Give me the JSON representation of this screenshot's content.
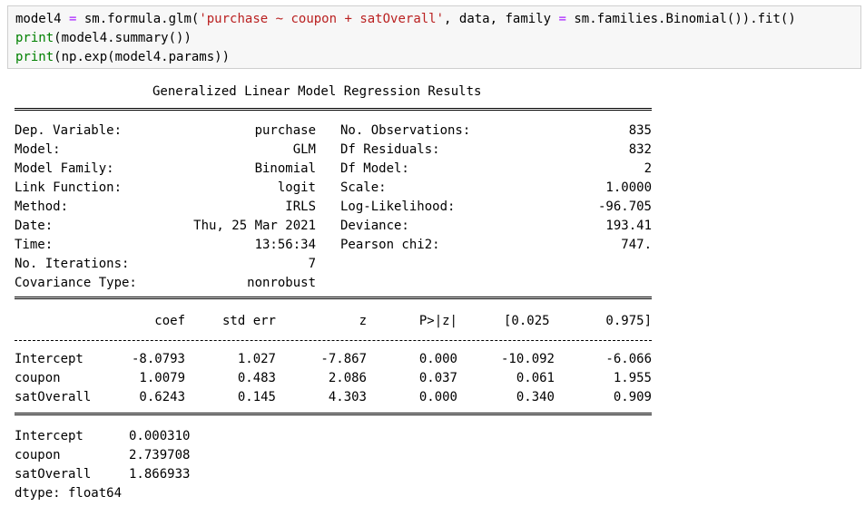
{
  "code": {
    "line1": {
      "a": "model4 ",
      "eq": "=",
      "b": " sm.formula.glm(",
      "s": "'purchase ~ coupon + satOverall'",
      "c": ", data, family ",
      "eq2": "=",
      "d": " sm.families.Binomial()).fit()"
    },
    "line2": {
      "kw": "print",
      "rest": "(model4.summary())"
    },
    "line3": {
      "kw": "print",
      "rest": "(np.exp(model4.params))"
    }
  },
  "summary": {
    "title": "Generalized Linear Model Regression Results",
    "left": [
      {
        "label": "Dep. Variable:",
        "value": "purchase"
      },
      {
        "label": "Model:",
        "value": "GLM"
      },
      {
        "label": "Model Family:",
        "value": "Binomial"
      },
      {
        "label": "Link Function:",
        "value": "logit"
      },
      {
        "label": "Method:",
        "value": "IRLS"
      },
      {
        "label": "Date:",
        "value": "Thu, 25 Mar 2021"
      },
      {
        "label": "Time:",
        "value": "13:56:34"
      },
      {
        "label": "No. Iterations:",
        "value": "7"
      },
      {
        "label": "Covariance Type:",
        "value": "nonrobust"
      }
    ],
    "right": [
      {
        "label": "No. Observations:",
        "value": "835"
      },
      {
        "label": "Df Residuals:",
        "value": "832"
      },
      {
        "label": "Df Model:",
        "value": "2"
      },
      {
        "label": "Scale:",
        "value": "1.0000"
      },
      {
        "label": "Log-Likelihood:",
        "value": "-96.705"
      },
      {
        "label": "Deviance:",
        "value": "193.41"
      },
      {
        "label": "Pearson chi2:",
        "value": "747."
      }
    ],
    "headers": [
      "coef",
      "std err",
      "z",
      "P>|z|",
      "[0.025",
      "0.975]"
    ],
    "rows": [
      {
        "name": "Intercept",
        "vals": [
          "-8.0793",
          "1.027",
          "-7.867",
          "0.000",
          "-10.092",
          "-6.066"
        ]
      },
      {
        "name": "coupon",
        "vals": [
          "1.0079",
          "0.483",
          "2.086",
          "0.037",
          "0.061",
          "1.955"
        ]
      },
      {
        "name": "satOverall",
        "vals": [
          "0.6243",
          "0.145",
          "4.303",
          "0.000",
          "0.340",
          "0.909"
        ]
      }
    ]
  },
  "params": {
    "rows": [
      {
        "name": "Intercept",
        "value": "0.000310"
      },
      {
        "name": "coupon",
        "value": "2.739708"
      },
      {
        "name": "satOverall",
        "value": "1.866933"
      }
    ],
    "dtype": "dtype: float64"
  }
}
